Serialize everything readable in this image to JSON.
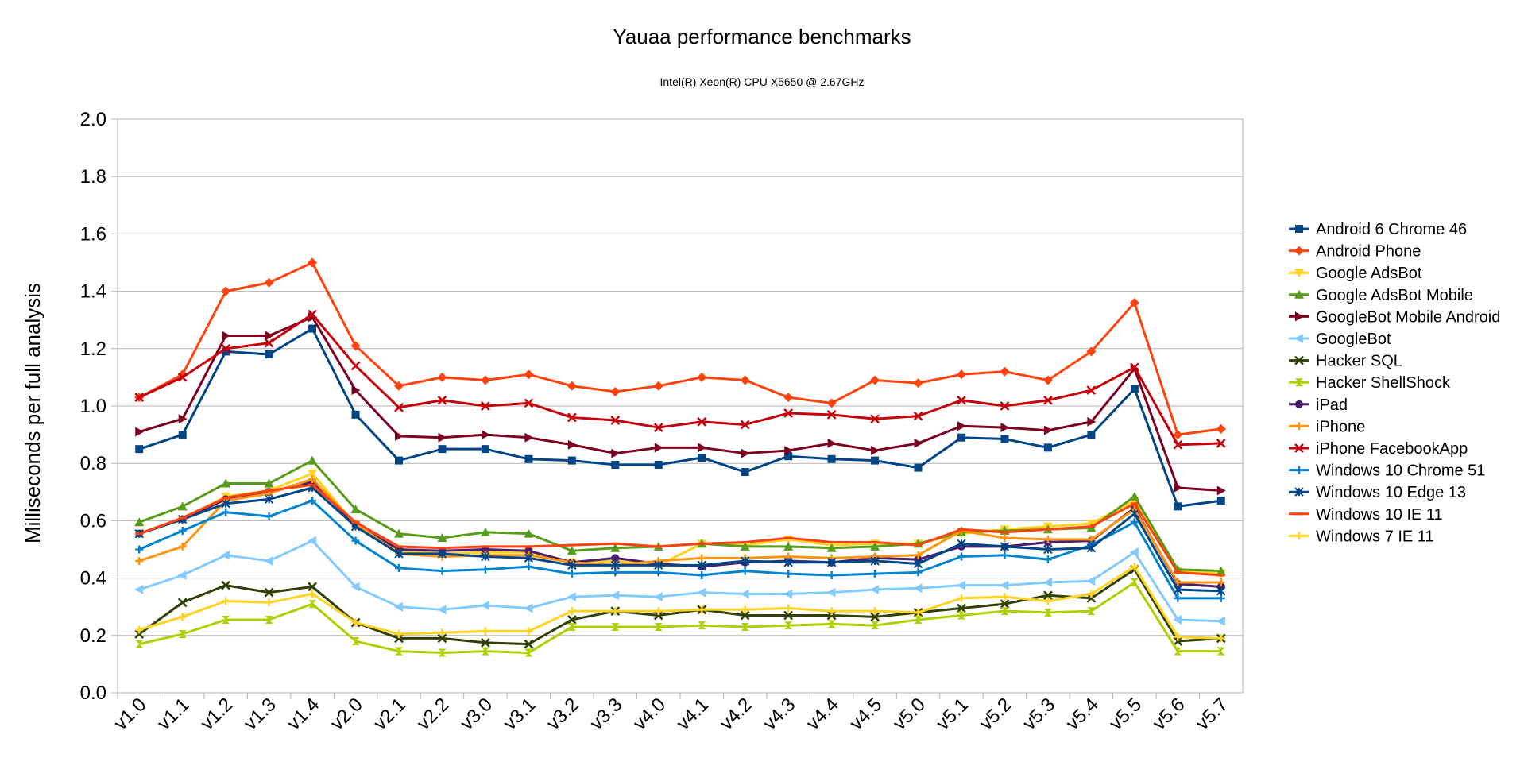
{
  "chart_data": {
    "type": "line",
    "title": "Yauaa performance benchmarks",
    "subtitle": "Intel(R) Xeon(R) CPU X5650  @ 2.67GHz",
    "ylabel": "Milliseconds per full analysis",
    "xlabel": "",
    "ylim": [
      0,
      2.0
    ],
    "yticks": [
      "0.0",
      "0.2",
      "0.4",
      "0.6",
      "0.8",
      "1.0",
      "1.2",
      "1.4",
      "1.6",
      "1.8",
      "2.0"
    ],
    "grid": true,
    "legend_position": "right",
    "x": [
      "v1.0",
      "v1.1",
      "v1.2",
      "v1.3",
      "v1.4",
      "v2.0",
      "v2.1",
      "v2.2",
      "v3.0",
      "v3.1",
      "v3.2",
      "v3.3",
      "v4.0",
      "v4.1",
      "v4.2",
      "v4.3",
      "v4.4",
      "v4.5",
      "v5.0",
      "v5.1",
      "v5.2",
      "v5.3",
      "v5.4",
      "v5.5",
      "v5.6",
      "v5.7"
    ],
    "series": [
      {
        "name": "Android 6 Chrome 46",
        "color": "#004586",
        "marker": "square",
        "values": [
          0.85,
          0.9,
          1.19,
          1.18,
          1.27,
          0.97,
          0.81,
          0.85,
          0.85,
          0.815,
          0.81,
          0.795,
          0.795,
          0.82,
          0.77,
          0.825,
          0.815,
          0.81,
          0.785,
          0.89,
          0.885,
          0.855,
          0.9,
          1.06,
          0.65,
          0.67
        ]
      },
      {
        "name": "Android Phone",
        "color": "#ff420e",
        "marker": "diamond",
        "values": [
          1.03,
          1.11,
          1.4,
          1.43,
          1.5,
          1.21,
          1.07,
          1.1,
          1.09,
          1.11,
          1.07,
          1.05,
          1.07,
          1.1,
          1.09,
          1.03,
          1.01,
          1.09,
          1.08,
          1.11,
          1.12,
          1.09,
          1.19,
          1.36,
          0.9,
          0.92
        ]
      },
      {
        "name": "Google AdsBot",
        "color": "#ffd320",
        "marker": "triangle-down",
        "values": [
          0.555,
          0.605,
          0.685,
          0.705,
          0.765,
          0.585,
          0.495,
          0.485,
          0.49,
          0.49,
          0.455,
          0.46,
          0.445,
          0.52,
          0.515,
          0.535,
          0.515,
          0.52,
          0.52,
          0.555,
          0.57,
          0.58,
          0.59,
          0.67,
          0.425,
          0.415
        ]
      },
      {
        "name": "Google AdsBot Mobile",
        "color": "#579d1c",
        "marker": "triangle-up",
        "values": [
          0.595,
          0.65,
          0.73,
          0.73,
          0.81,
          0.64,
          0.555,
          0.54,
          0.56,
          0.555,
          0.495,
          0.505,
          0.51,
          0.52,
          0.51,
          0.51,
          0.505,
          0.51,
          0.52,
          0.56,
          0.565,
          0.57,
          0.575,
          0.685,
          0.43,
          0.425
        ]
      },
      {
        "name": "GoogleBot Mobile Android",
        "color": "#7e0021",
        "marker": "triangle-right",
        "values": [
          0.91,
          0.955,
          1.245,
          1.245,
          1.31,
          1.055,
          0.895,
          0.89,
          0.9,
          0.89,
          0.865,
          0.835,
          0.855,
          0.855,
          0.835,
          0.845,
          0.87,
          0.845,
          0.87,
          0.93,
          0.925,
          0.915,
          0.945,
          1.13,
          0.715,
          0.705
        ]
      },
      {
        "name": "GoogleBot",
        "color": "#83caff",
        "marker": "triangle-left",
        "values": [
          0.36,
          0.41,
          0.48,
          0.46,
          0.53,
          0.37,
          0.3,
          0.29,
          0.305,
          0.295,
          0.335,
          0.34,
          0.335,
          0.35,
          0.345,
          0.345,
          0.35,
          0.36,
          0.365,
          0.375,
          0.375,
          0.385,
          0.39,
          0.49,
          0.255,
          0.25
        ]
      },
      {
        "name": "Hacker SQL",
        "color": "#314004",
        "marker": "x",
        "values": [
          0.205,
          0.315,
          0.375,
          0.35,
          0.37,
          0.245,
          0.19,
          0.19,
          0.175,
          0.17,
          0.255,
          0.285,
          0.27,
          0.29,
          0.27,
          0.27,
          0.27,
          0.265,
          0.28,
          0.295,
          0.31,
          0.34,
          0.33,
          0.43,
          0.18,
          0.19
        ]
      },
      {
        "name": "Hacker ShellShock",
        "color": "#aecf00",
        "marker": "hourglass",
        "values": [
          0.17,
          0.205,
          0.255,
          0.255,
          0.31,
          0.18,
          0.145,
          0.14,
          0.145,
          0.14,
          0.23,
          0.23,
          0.23,
          0.235,
          0.23,
          0.235,
          0.24,
          0.235,
          0.255,
          0.27,
          0.285,
          0.28,
          0.285,
          0.385,
          0.145,
          0.145
        ]
      },
      {
        "name": "iPad",
        "color": "#4b1f6f",
        "marker": "circle",
        "values": [
          0.555,
          0.605,
          0.675,
          0.7,
          0.735,
          0.585,
          0.5,
          0.495,
          0.5,
          0.495,
          0.455,
          0.47,
          0.45,
          0.44,
          0.455,
          0.46,
          0.455,
          0.47,
          0.465,
          0.51,
          0.51,
          0.525,
          0.53,
          0.645,
          0.38,
          0.37
        ]
      },
      {
        "name": "iPhone",
        "color": "#ff950e",
        "marker": "plus",
        "values": [
          0.46,
          0.51,
          0.67,
          0.695,
          0.745,
          0.59,
          0.485,
          0.475,
          0.48,
          0.48,
          0.455,
          0.445,
          0.46,
          0.47,
          0.47,
          0.475,
          0.47,
          0.475,
          0.48,
          0.565,
          0.54,
          0.535,
          0.535,
          0.64,
          0.385,
          0.385
        ]
      },
      {
        "name": "iPhone FacebookApp",
        "color": "#c5000b",
        "marker": "x",
        "values": [
          1.03,
          1.1,
          1.2,
          1.22,
          1.32,
          1.14,
          0.995,
          1.02,
          1.0,
          1.01,
          0.96,
          0.95,
          0.925,
          0.945,
          0.935,
          0.975,
          0.97,
          0.955,
          0.965,
          1.02,
          1.0,
          1.02,
          1.055,
          1.135,
          0.865,
          0.87
        ]
      },
      {
        "name": "Windows 10 Chrome 51",
        "color": "#0084d1",
        "marker": "plus",
        "values": [
          0.5,
          0.565,
          0.63,
          0.615,
          0.67,
          0.53,
          0.435,
          0.425,
          0.43,
          0.44,
          0.415,
          0.42,
          0.42,
          0.41,
          0.425,
          0.415,
          0.41,
          0.415,
          0.42,
          0.475,
          0.48,
          0.465,
          0.515,
          0.595,
          0.33,
          0.33
        ]
      },
      {
        "name": "Windows 10 Edge 13",
        "color": "#004586",
        "marker": "asterisk",
        "values": [
          0.555,
          0.605,
          0.66,
          0.675,
          0.715,
          0.58,
          0.485,
          0.485,
          0.475,
          0.47,
          0.445,
          0.445,
          0.445,
          0.445,
          0.46,
          0.455,
          0.455,
          0.46,
          0.45,
          0.52,
          0.51,
          0.5,
          0.505,
          0.625,
          0.36,
          0.355
        ]
      },
      {
        "name": "Windows 10 IE 11",
        "color": "#ff420e",
        "marker": "dash",
        "values": [
          0.555,
          0.61,
          0.68,
          0.705,
          0.725,
          0.595,
          0.51,
          0.505,
          0.51,
          0.51,
          0.515,
          0.52,
          0.51,
          0.52,
          0.525,
          0.54,
          0.525,
          0.525,
          0.515,
          0.57,
          0.56,
          0.57,
          0.58,
          0.66,
          0.42,
          0.41
        ]
      },
      {
        "name": "Windows 7 IE 11",
        "color": "#ffd320",
        "marker": "plus",
        "values": [
          0.22,
          0.265,
          0.32,
          0.315,
          0.345,
          0.245,
          0.205,
          0.21,
          0.215,
          0.215,
          0.285,
          0.285,
          0.285,
          0.29,
          0.29,
          0.295,
          0.285,
          0.285,
          0.28,
          0.33,
          0.335,
          0.32,
          0.345,
          0.44,
          0.195,
          0.19
        ]
      }
    ]
  }
}
